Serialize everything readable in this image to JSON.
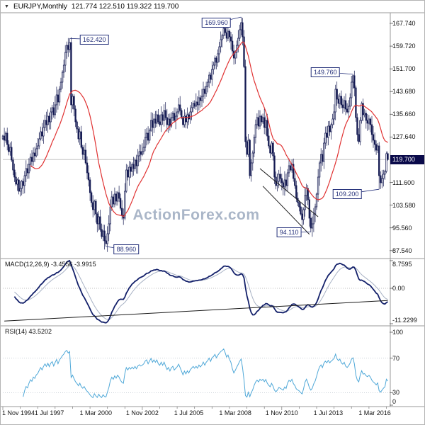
{
  "header": {
    "symbol_period": "EURJPY,Monthly",
    "ohlc": "121.774 122.510 119.322 119.700"
  },
  "watermark": "ActionForex.com",
  "chart_data": [
    {
      "type": "candlestick",
      "title": "EURJPY,Monthly",
      "interval": "monthly",
      "start": "1994-11",
      "end": "2016-12",
      "ohlc_current": {
        "open": 121.774,
        "high": 122.51,
        "low": 119.322,
        "close": 119.7
      },
      "current_price_label": "119.700",
      "first_open": 127.0,
      "monthly_closes": [
        128.0,
        126.5,
        129.0,
        125.0,
        122.5,
        124.0,
        119.5,
        116.0,
        113.5,
        111.0,
        112.5,
        108.5,
        109.5,
        112.0,
        110.5,
        114.0,
        116.5,
        115.0,
        118.0,
        120.5,
        119.0,
        122.0,
        121.0,
        123.5,
        124.5,
        127.0,
        129.5,
        128.0,
        131.0,
        133.5,
        132.0,
        135.0,
        133.0,
        136.5,
        138.0,
        135.5,
        139.0,
        142.5,
        140.0,
        144.5,
        147.0,
        150.5,
        153.0,
        157.5,
        160.0,
        158.5,
        161.0,
        139.0,
        142.0,
        137.5,
        133.0,
        130.5,
        127.0,
        129.5,
        124.0,
        121.5,
        123.0,
        118.5,
        115.0,
        112.5,
        108.0,
        104.5,
        102.0,
        105.0,
        100.5,
        97.0,
        99.5,
        95.0,
        92.5,
        94.5,
        91.0,
        90.0,
        93.5,
        97.0,
        103.0,
        106.5,
        104.0,
        107.5,
        105.0,
        108.0,
        106.0,
        102.5,
        100.0,
        99.0,
        108.5,
        116.0,
        113.5,
        117.0,
        115.5,
        118.0,
        116.5,
        119.5,
        117.5,
        121.0,
        122.5,
        121.5,
        122.5,
        124.0,
        127.5,
        129.0,
        126.5,
        130.0,
        133.5,
        131.0,
        134.0,
        132.5,
        135.5,
        133.0,
        132.0,
        135.5,
        133.5,
        137.0,
        134.5,
        132.0,
        134.0,
        131.5,
        134.5,
        136.0,
        133.5,
        135.0,
        136.5,
        139.0,
        137.0,
        134.5,
        132.0,
        135.0,
        133.0,
        135.5,
        134.0,
        136.5,
        138.0,
        139.5,
        138.5,
        140.0,
        139.0,
        141.5,
        140.5,
        142.0,
        144.5,
        143.0,
        145.5,
        147.0,
        149.5,
        148.0,
        151.5,
        153.0,
        155.5,
        154.0,
        157.0,
        159.5,
        162.0,
        163.5,
        166.0,
        164.5,
        162.5,
        165.0,
        163.0,
        161.5,
        158.0,
        155.5,
        157.5,
        160.0,
        162.5,
        165.5,
        168.0,
        163.0,
        152.5,
        126.0,
        121.5,
        126.5,
        114.0,
        118.5,
        122.0,
        127.5,
        132.0,
        134.5,
        131.5,
        135.0,
        133.0,
        134.5,
        131.0,
        133.5,
        128.0,
        124.5,
        122.0,
        125.5,
        121.0,
        113.5,
        110.5,
        112.0,
        114.5,
        113.0,
        111.5,
        110.0,
        112.5,
        110.5,
        115.0,
        117.5,
        116.0,
        118.0,
        113.0,
        110.5,
        106.0,
        104.5,
        103.0,
        100.5,
        98.5,
        102.0,
        107.0,
        109.5,
        105.5,
        99.0,
        95.5,
        97.0,
        100.5,
        103.0,
        107.5,
        113.5,
        118.5,
        121.5,
        119.0,
        125.5,
        129.0,
        127.5,
        131.5,
        129.5,
        132.0,
        134.0,
        136.5,
        144.5,
        141.0,
        139.5,
        142.0,
        139.0,
        138.0,
        140.5,
        137.5,
        136.5,
        138.5,
        141.5,
        147.0,
        149.3,
        145.0,
        134.5,
        128.5,
        126.0,
        133.5,
        139.5,
        135.5,
        136.0,
        133.5,
        132.5,
        134.0,
        132.0,
        128.5,
        126.5,
        125.0,
        123.0,
        124.5,
        114.0,
        111.5,
        113.0,
        114.5,
        115.5,
        121.8,
        119.7
      ],
      "wick_overrides": {
        "46": {
          "high": 162.42
        },
        "71": {
          "low": 88.96
        },
        "164": {
          "high": 169.96
        },
        "212": {
          "low": 94.11
        },
        "241": {
          "high": 149.76
        },
        "259": {
          "low": 109.2
        },
        "265": {
          "high": 122.51,
          "low": 119.322
        }
      },
      "moving_average": {
        "type": "SMA",
        "period": 20,
        "color": "#e03232"
      },
      "y_ticks": [
        {
          "label": "167.740",
          "value": 167.74
        },
        {
          "label": "159.720",
          "value": 159.72
        },
        {
          "label": "151.700",
          "value": 151.7
        },
        {
          "label": "143.680",
          "value": 143.68
        },
        {
          "label": "135.660",
          "value": 135.66
        },
        {
          "label": "127.640",
          "value": 127.64
        },
        {
          "label": "111.600",
          "value": 111.6
        },
        {
          "label": "103.580",
          "value": 103.58
        },
        {
          "label": "95.560",
          "value": 95.56
        },
        {
          "label": "87.540",
          "value": 87.54
        }
      ],
      "x_ticks": [
        {
          "label": "1 Nov 1994",
          "m": 0
        },
        {
          "label": "1 Jul 1997",
          "m": 32
        },
        {
          "label": "1 Mar 2000",
          "m": 64
        },
        {
          "label": "1 Nov 2002",
          "m": 96
        },
        {
          "label": "1 Jul 2005",
          "m": 128
        },
        {
          "label": "1 Mar 2008",
          "m": 160
        },
        {
          "label": "1 Nov 2010",
          "m": 192
        },
        {
          "label": "1 Jul 2013",
          "m": 224
        },
        {
          "label": "1 Mar 2016",
          "m": 256
        }
      ],
      "annotations": {
        "price_labels": [
          {
            "text": "162.420",
            "box_m": 63,
            "box_price": 162.1,
            "anchor_m": 46,
            "anchor_price": 162.42
          },
          {
            "text": "169.960",
            "box_m": 147,
            "box_price": 168.0,
            "anchor_m": 164,
            "anchor_price": 169.96
          },
          {
            "text": "149.760",
            "box_m": 222,
            "box_price": 150.6,
            "anchor_m": 241,
            "anchor_price": 149.76
          },
          {
            "text": "109.200",
            "box_m": 237,
            "box_price": 107.6,
            "anchor_m": 259,
            "anchor_price": 109.2
          },
          {
            "text": "88.960",
            "box_m": 85,
            "box_price": 88.0,
            "anchor_m": 71,
            "anchor_price": 88.96
          },
          {
            "text": "94.110",
            "box_m": 197,
            "box_price": 94.0,
            "anchor_m": 212,
            "anchor_price": 94.11
          }
        ],
        "channel_lines": [
          {
            "m1": 177,
            "p1": 116.5,
            "m2": 217,
            "p2": 99.5
          },
          {
            "m1": 179,
            "p1": 110.3,
            "m2": 211,
            "p2": 93.3
          }
        ]
      }
    },
    {
      "type": "line",
      "name": "MACD(12,26,9)",
      "label": "MACD(12,26,9) -3.4556 -3.9915",
      "params": {
        "fast": 12,
        "slow": 26,
        "signal": 9
      },
      "current_values": [
        -3.4556,
        -3.9915
      ],
      "y_ticks": [
        {
          "label": "8.7595",
          "value": 8.7595
        },
        {
          "label": "0.00",
          "value": 0
        },
        {
          "label": "-11.2299",
          "value": -11.2299
        }
      ],
      "range": [
        -11.2299,
        8.7595
      ],
      "derived_from": "chart_data.0.monthly_closes",
      "trendline": {
        "m1": 1,
        "v1": -10.4,
        "m2": 265,
        "v2": -3.9
      },
      "colors": {
        "macd": "#13206a",
        "signal": "#a7b1c4"
      }
    },
    {
      "type": "line",
      "name": "RSI(14)",
      "label": "RSI(14) 43.5202",
      "period": 14,
      "current_value": 43.5202,
      "y_ticks": [
        {
          "label": "100",
          "value": 100
        },
        {
          "label": "70",
          "value": 70
        },
        {
          "label": "30",
          "value": 30
        },
        {
          "label": "0",
          "value": 0
        }
      ],
      "range": [
        0,
        100
      ],
      "levels": [
        70,
        30
      ],
      "color": "#4fa8d8",
      "derived_from": "chart_data.0.monthly_closes"
    }
  ]
}
